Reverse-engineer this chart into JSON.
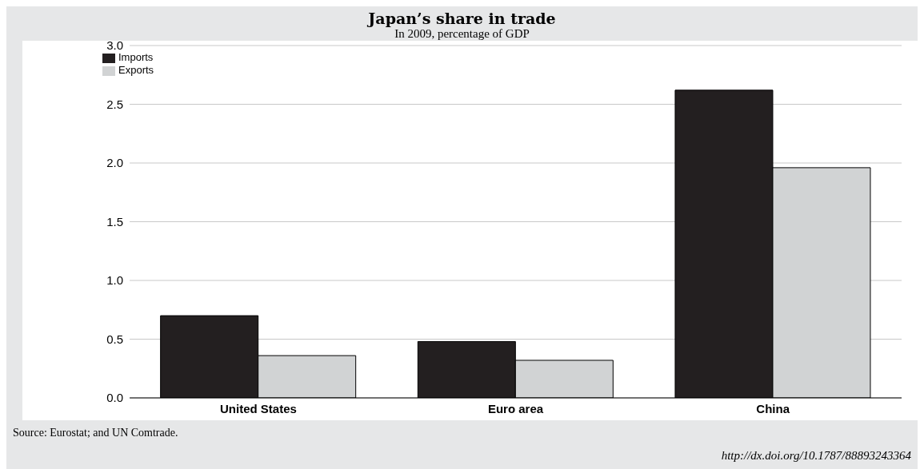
{
  "chart_data": {
    "type": "bar",
    "title": "Japan’s share in trade",
    "subtitle": "In 2009, percentage of GDP",
    "categories": [
      "United States",
      "Euro area",
      "China"
    ],
    "series": [
      {
        "name": "Imports",
        "color": "#231f20",
        "values": [
          0.7,
          0.48,
          2.62
        ]
      },
      {
        "name": "Exports",
        "color": "#d1d3d4",
        "values": [
          0.36,
          0.32,
          1.96
        ]
      }
    ],
    "ylim": [
      0,
      3
    ],
    "yticks": [
      {
        "value": 0,
        "label": "0.0"
      },
      {
        "value": 0.5,
        "label": "0.5"
      },
      {
        "value": 1,
        "label": "1.0"
      },
      {
        "value": 1.5,
        "label": "1.5"
      },
      {
        "value": 2,
        "label": "2.0"
      },
      {
        "value": 2.5,
        "label": "2.5"
      },
      {
        "value": 3,
        "label": "3.0"
      }
    ],
    "grid": "y",
    "legend": "top left",
    "annotations": [
      "Source: Eurostat; and UN Comtrade.",
      "http://dx.doi.org/10.1787/88893243364"
    ]
  }
}
